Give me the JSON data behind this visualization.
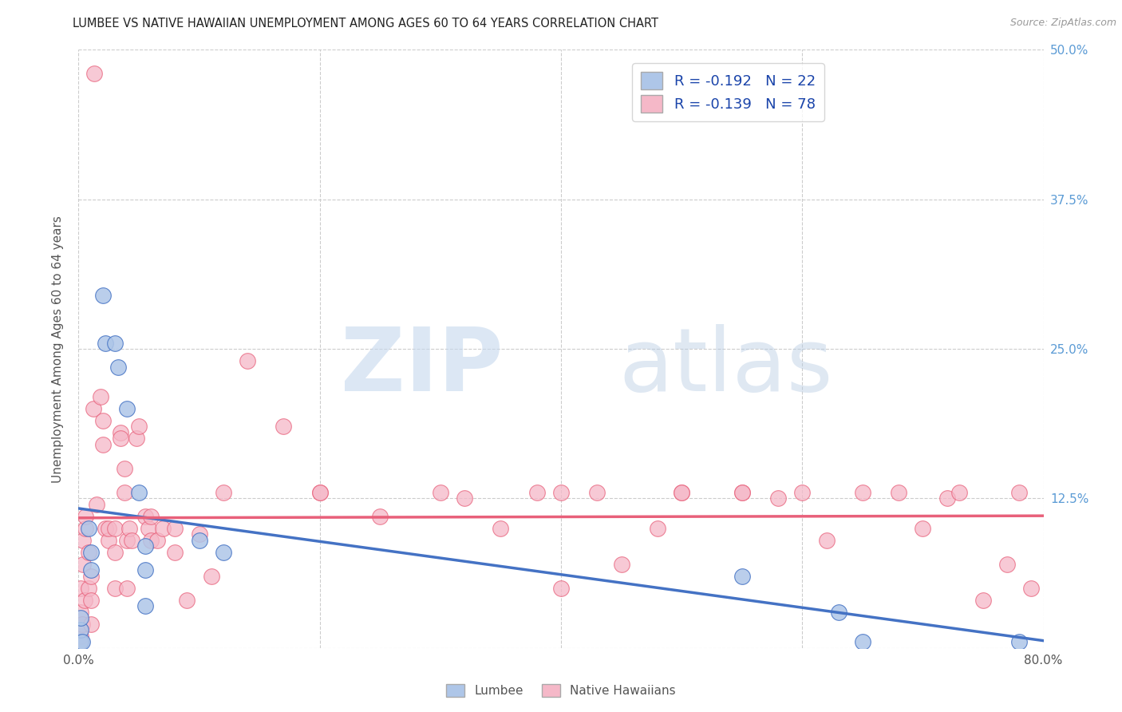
{
  "title": "LUMBEE VS NATIVE HAWAIIAN UNEMPLOYMENT AMONG AGES 60 TO 64 YEARS CORRELATION CHART",
  "source": "Source: ZipAtlas.com",
  "ylabel": "Unemployment Among Ages 60 to 64 years",
  "xlim": [
    0.0,
    0.8
  ],
  "ylim": [
    0.0,
    0.5
  ],
  "yticks": [
    0.0,
    0.125,
    0.25,
    0.375,
    0.5
  ],
  "ytick_labels": [
    "",
    "12.5%",
    "25.0%",
    "37.5%",
    "50.0%"
  ],
  "xticks": [
    0.0,
    0.2,
    0.4,
    0.6,
    0.8
  ],
  "xtick_labels": [
    "0.0%",
    "",
    "",
    "",
    "80.0%"
  ],
  "lumbee_R": -0.192,
  "lumbee_N": 22,
  "nh_R": -0.139,
  "nh_N": 78,
  "lumbee_color": "#aec6e8",
  "nh_color": "#f5b8c8",
  "lumbee_line_color": "#4472c4",
  "nh_line_color": "#e8607a",
  "background_color": "#ffffff",
  "grid_color": "#cccccc",
  "lumbee_points": [
    [
      0.002,
      0.005
    ],
    [
      0.002,
      0.015
    ],
    [
      0.002,
      0.025
    ],
    [
      0.003,
      0.005
    ],
    [
      0.008,
      0.1
    ],
    [
      0.01,
      0.08
    ],
    [
      0.01,
      0.065
    ],
    [
      0.02,
      0.295
    ],
    [
      0.022,
      0.255
    ],
    [
      0.03,
      0.255
    ],
    [
      0.033,
      0.235
    ],
    [
      0.04,
      0.2
    ],
    [
      0.05,
      0.13
    ],
    [
      0.055,
      0.085
    ],
    [
      0.055,
      0.065
    ],
    [
      0.055,
      0.035
    ],
    [
      0.1,
      0.09
    ],
    [
      0.12,
      0.08
    ],
    [
      0.55,
      0.06
    ],
    [
      0.63,
      0.03
    ],
    [
      0.65,
      0.005
    ],
    [
      0.78,
      0.005
    ]
  ],
  "nh_points": [
    [
      0.001,
      0.005
    ],
    [
      0.002,
      0.01
    ],
    [
      0.002,
      0.03
    ],
    [
      0.002,
      0.05
    ],
    [
      0.003,
      0.02
    ],
    [
      0.004,
      0.07
    ],
    [
      0.004,
      0.09
    ],
    [
      0.005,
      0.04
    ],
    [
      0.006,
      0.1
    ],
    [
      0.006,
      0.11
    ],
    [
      0.008,
      0.05
    ],
    [
      0.008,
      0.08
    ],
    [
      0.01,
      0.02
    ],
    [
      0.01,
      0.04
    ],
    [
      0.01,
      0.06
    ],
    [
      0.012,
      0.2
    ],
    [
      0.013,
      0.48
    ],
    [
      0.015,
      0.12
    ],
    [
      0.018,
      0.21
    ],
    [
      0.02,
      0.19
    ],
    [
      0.02,
      0.17
    ],
    [
      0.022,
      0.1
    ],
    [
      0.025,
      0.09
    ],
    [
      0.025,
      0.1
    ],
    [
      0.03,
      0.05
    ],
    [
      0.03,
      0.08
    ],
    [
      0.03,
      0.1
    ],
    [
      0.035,
      0.18
    ],
    [
      0.035,
      0.175
    ],
    [
      0.038,
      0.15
    ],
    [
      0.038,
      0.13
    ],
    [
      0.04,
      0.05
    ],
    [
      0.04,
      0.09
    ],
    [
      0.042,
      0.1
    ],
    [
      0.044,
      0.09
    ],
    [
      0.048,
      0.175
    ],
    [
      0.05,
      0.185
    ],
    [
      0.055,
      0.11
    ],
    [
      0.058,
      0.1
    ],
    [
      0.06,
      0.09
    ],
    [
      0.06,
      0.11
    ],
    [
      0.065,
      0.09
    ],
    [
      0.07,
      0.1
    ],
    [
      0.08,
      0.08
    ],
    [
      0.08,
      0.1
    ],
    [
      0.09,
      0.04
    ],
    [
      0.1,
      0.095
    ],
    [
      0.11,
      0.06
    ],
    [
      0.12,
      0.13
    ],
    [
      0.14,
      0.24
    ],
    [
      0.17,
      0.185
    ],
    [
      0.2,
      0.13
    ],
    [
      0.2,
      0.13
    ],
    [
      0.25,
      0.11
    ],
    [
      0.3,
      0.13
    ],
    [
      0.32,
      0.125
    ],
    [
      0.35,
      0.1
    ],
    [
      0.38,
      0.13
    ],
    [
      0.4,
      0.05
    ],
    [
      0.4,
      0.13
    ],
    [
      0.43,
      0.13
    ],
    [
      0.45,
      0.07
    ],
    [
      0.48,
      0.1
    ],
    [
      0.5,
      0.13
    ],
    [
      0.5,
      0.13
    ],
    [
      0.55,
      0.13
    ],
    [
      0.55,
      0.13
    ],
    [
      0.58,
      0.125
    ],
    [
      0.6,
      0.13
    ],
    [
      0.62,
      0.09
    ],
    [
      0.65,
      0.13
    ],
    [
      0.68,
      0.13
    ],
    [
      0.7,
      0.1
    ],
    [
      0.72,
      0.125
    ],
    [
      0.73,
      0.13
    ],
    [
      0.75,
      0.04
    ],
    [
      0.77,
      0.07
    ],
    [
      0.78,
      0.13
    ],
    [
      0.79,
      0.05
    ]
  ]
}
